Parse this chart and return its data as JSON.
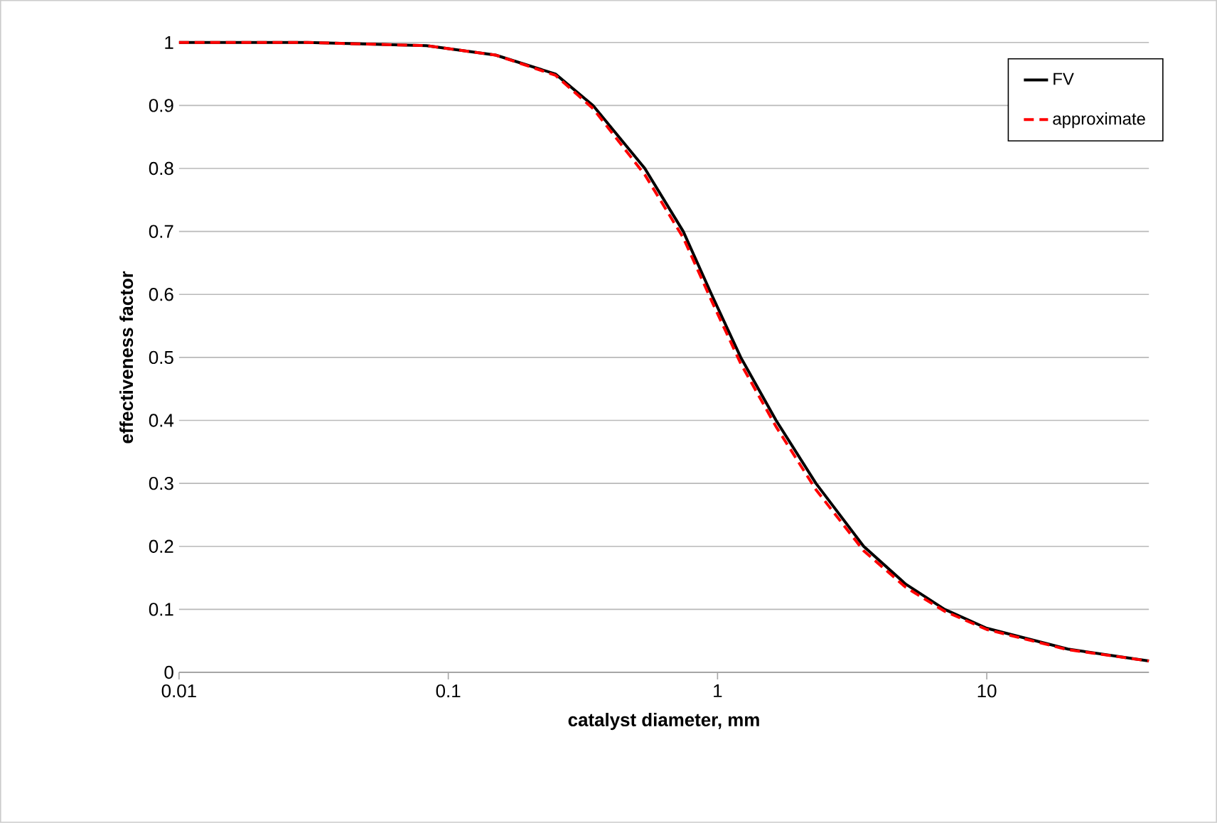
{
  "chart_data": {
    "type": "line",
    "xlabel": "catalyst diameter, mm",
    "ylabel": "effectiveness factor",
    "xlim": [
      0.01,
      40
    ],
    "xticks": [
      0.01,
      0.1,
      1,
      10
    ],
    "log": "x",
    "ylim": [
      0,
      1
    ],
    "yticks": [
      0,
      0.1,
      0.2,
      0.3,
      0.4,
      0.5,
      0.6,
      0.7,
      0.8,
      0.9,
      1
    ],
    "grid": "y",
    "legend": "top right",
    "marker": "none",
    "series": [
      {
        "name": "FV",
        "color": "#000000",
        "line_style": "solid",
        "x": [
          0.01,
          0.03,
          0.083,
          0.15,
          0.25,
          0.345,
          0.537,
          0.746,
          0.95,
          1.22,
          1.65,
          2.32,
          3.49,
          5,
          6.97,
          10,
          20,
          40
        ],
        "values": [
          1.0,
          1.0,
          0.995,
          0.98,
          0.95,
          0.9,
          0.8,
          0.7,
          0.6,
          0.5,
          0.4,
          0.3,
          0.2,
          0.14,
          0.1,
          0.07,
          0.037,
          0.018
        ]
      },
      {
        "name": "approximate",
        "color": "#ff0000",
        "line_style": "dashed",
        "x": [
          0.01,
          0.03,
          0.083,
          0.15,
          0.25,
          0.345,
          0.537,
          0.746,
          0.95,
          1.22,
          1.65,
          2.32,
          3.49,
          5,
          6.97,
          10,
          20,
          40
        ],
        "values": [
          1.0,
          1.0,
          0.995,
          0.98,
          0.948,
          0.895,
          0.79,
          0.69,
          0.59,
          0.49,
          0.39,
          0.29,
          0.193,
          0.135,
          0.097,
          0.068,
          0.036,
          0.018
        ]
      }
    ]
  }
}
